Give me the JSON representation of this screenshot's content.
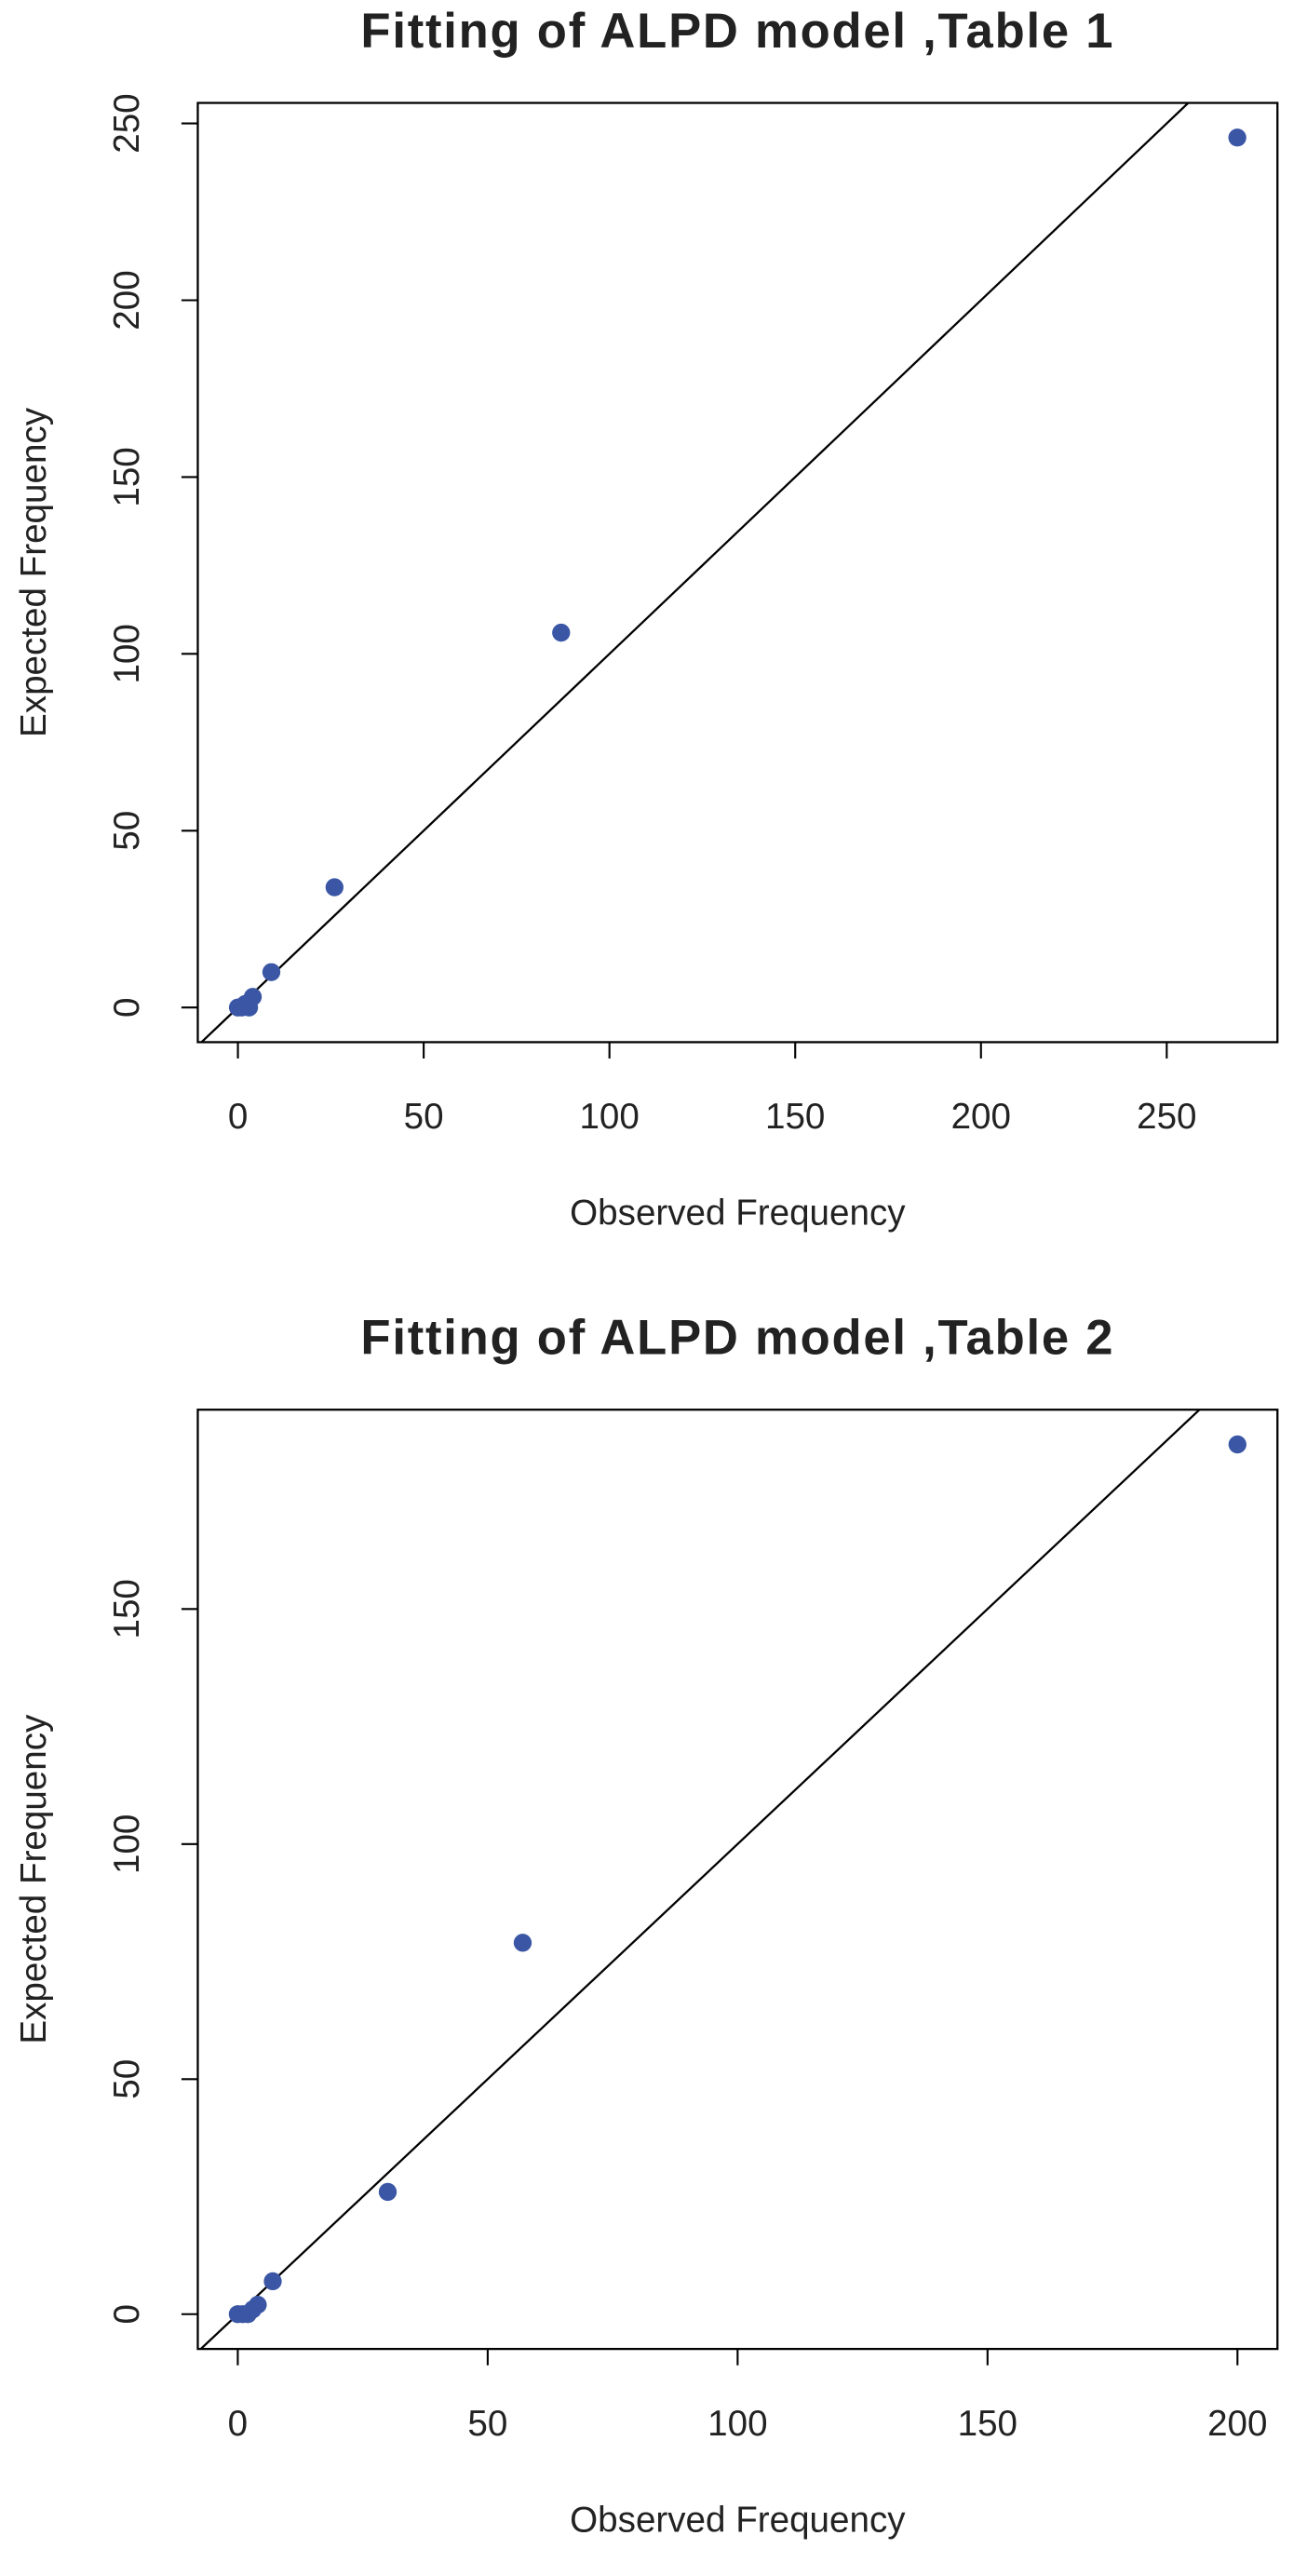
{
  "chart_data": [
    {
      "type": "scatter",
      "title": "Fitting of ALPD model ,Table 1",
      "x_label": "Observed Frequency",
      "y_label": "Expected Frequency",
      "x": [
        0,
        1,
        2,
        3,
        4,
        9,
        26,
        87,
        269
      ],
      "y": [
        0,
        0,
        1,
        0,
        3,
        10,
        34,
        106,
        246
      ],
      "color": "#3a56a5",
      "xlim": [
        -10.8,
        279.8
      ],
      "ylim": [
        -9.8,
        255.8
      ],
      "xticks": [
        0,
        50,
        100,
        150,
        200,
        250
      ],
      "yticks": [
        0,
        50,
        100,
        150,
        200,
        250
      ]
    },
    {
      "type": "scatter",
      "title": "Fitting of ALPD model ,Table 2",
      "x_label": "Observed Frequency",
      "y_label": "Expected Frequency",
      "x": [
        0,
        1,
        2,
        3,
        4,
        7,
        30,
        57,
        200
      ],
      "y": [
        0,
        0,
        0,
        1,
        2,
        7,
        26,
        79,
        185
      ],
      "color": "#3a56a5",
      "xlim": [
        -8,
        208
      ],
      "ylim": [
        -7.4,
        192.4
      ],
      "xticks": [
        0,
        50,
        100,
        150,
        200
      ],
      "yticks": [
        0,
        50,
        100,
        150
      ]
    }
  ]
}
